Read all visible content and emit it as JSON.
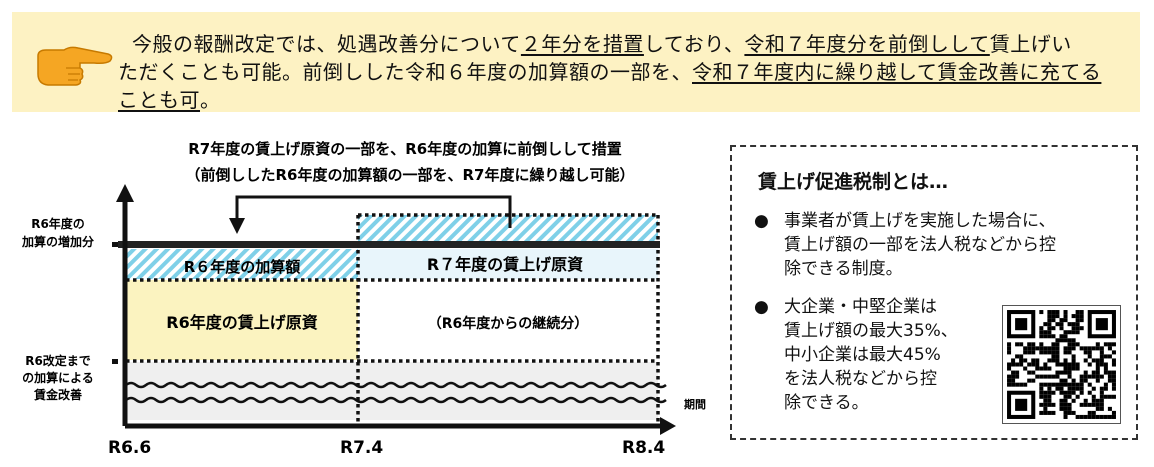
{
  "banner": {
    "icon": "pointing-hand-icon",
    "line1": [
      "今般の報酬改定では、処遇改善分について",
      "２年分を措置",
      "しており、",
      "令和７年度分を前倒しして",
      "賃上げい"
    ],
    "line2": [
      "ただくことも可能。前倒しした令和６年度の加算額の一部を、",
      "令和７年度内に繰り越して賃金改善に充てる"
    ],
    "line3": [
      "ことも可",
      "。"
    ],
    "bg_color": "#fdf2c3"
  },
  "diagram": {
    "title1": "R7年度の賃上げ原資の一部を、R6年度の加算に前倒しして措置",
    "title2": "（前倒ししたR6年度の加算額の一部を、R7年度に繰り越し可能）",
    "ylabel_top": [
      "R6年度の",
      "加算の増加分"
    ],
    "ylabel_bottom": [
      "R6改定まで",
      "の加算による",
      "賃金改善"
    ],
    "xlabel": "期間",
    "xticks": [
      "R6.6",
      "R7.4",
      "R8.4"
    ],
    "r6_addition": "R６年度の加算額",
    "r7_funds": "R７年度の賃上げ原資",
    "r6_funds": "R6年度の賃上げ原資",
    "r6_continued": "（R6年度からの継続分）",
    "colors": {
      "hatch": "#7fd0e8",
      "yellow": "#fbf3c0",
      "lightblue": "#e8f5fb",
      "gray": "#efefef"
    }
  },
  "taxbox": {
    "title": "賃上げ促進税制とは…",
    "bullet1": [
      "事業者が賃上げを実施した場合に、",
      "賃上げ額の一部を法人税などから控",
      "除できる制度。"
    ],
    "bullet2": [
      "大企業・中堅企業は",
      "賃上げ額の最大35%、",
      "中小企業は最大45%",
      "を法人税などから控",
      "除できる。"
    ],
    "bullet_symbol": "●",
    "qr_icon": "qr-code-icon"
  }
}
